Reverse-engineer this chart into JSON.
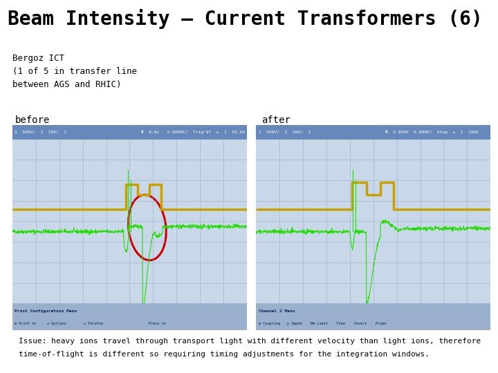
{
  "title": "Beam Intensity – Current Transformers (6)",
  "subtitle_line1": "Bergoz ICT",
  "subtitle_line2": "(1 of 5 in transfer line",
  "subtitle_line3": "between AGS and RHIC)",
  "label_before": "before",
  "label_after": "after",
  "footer_line1": "    Issue: heavy ions travel through transport light with different velocity than light ions, therefore",
  "footer_line2": "    time-of-flight is different so requiring timing adjustments for the integration windows.",
  "bg_color": "#ffffff",
  "title_color": "#000000",
  "scope_bg": "#c8d8e8",
  "scope_grid_color": "#9aadcc",
  "scope_header_bg": "#6688bb",
  "scope_footer_bg": "#9ab0cc",
  "gold_color": "#c8a000",
  "green_color": "#22dd00",
  "circle_color": "#cc0000",
  "font_color": "#000000",
  "title_fontsize": 20,
  "subtitle_fontsize": 9,
  "label_fontsize": 10,
  "footer_fontsize": 8
}
